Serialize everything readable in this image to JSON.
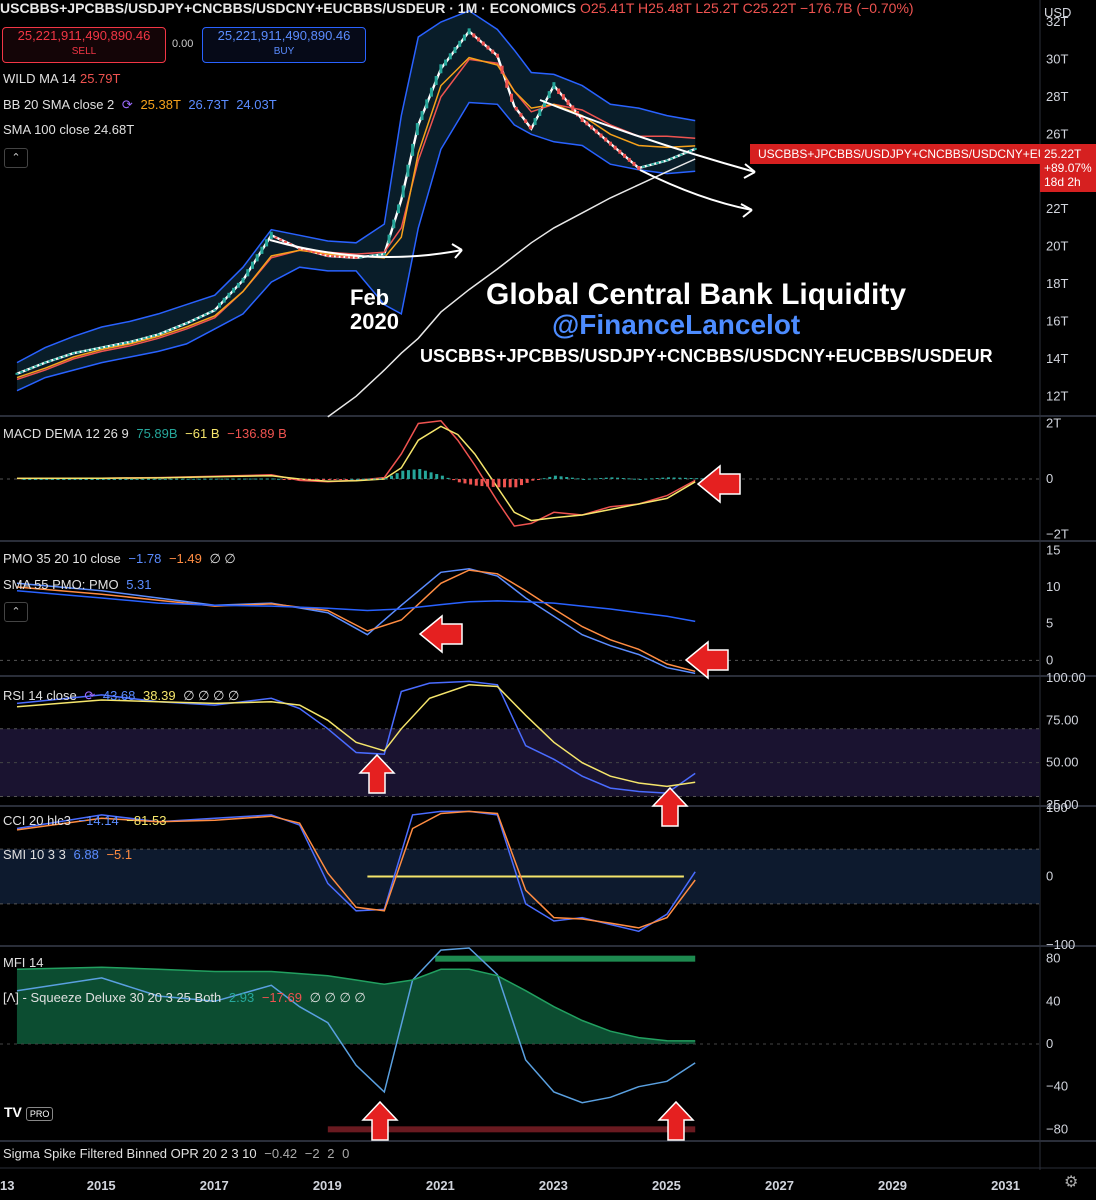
{
  "header": {
    "symbol": "USCBBS+JPCBBS/USDJPY+CNCBBS/USDCNY+EUCBBS/USDEUR · 1M · ECONOMICS",
    "ohlc": "O25.41T H25.48T L25.2T C25.22T −176.7B (−0.70%)",
    "currency": "USD"
  },
  "trade": {
    "sell_price": "25,221,911,490,890.46",
    "sell_label": "SELL",
    "spread": "0.00",
    "buy_price": "25,221,911,490,890.46",
    "buy_label": "BUY"
  },
  "indicators": {
    "wild_ma": {
      "label": "WILD MA 14",
      "value": "25.79T"
    },
    "bb": {
      "label": "BB 20 SMA close 2",
      "basis": "25.38T",
      "upper": "26.73T",
      "lower": "24.03T"
    },
    "sma100": {
      "label": "SMA 100 close",
      "value": "24.68T"
    },
    "macd": {
      "label": "MACD DEMA 12 26 9",
      "v1": "75.89B",
      "v2": "−61 B",
      "v3": "−136.89 B"
    },
    "pmo": {
      "label": "PMO 35 20 10 close",
      "v1": "−1.78",
      "v2": "−1.49",
      "v3": "∅ ∅"
    },
    "sma55pmo": {
      "label": "SMA 55 PMO: PMO",
      "value": "5.31"
    },
    "rsi": {
      "label": "RSI 14 close",
      "v1": "43.68",
      "v2": "38.39",
      "v3": "∅ ∅ ∅ ∅"
    },
    "cci": {
      "label": "CCI 20 hlc3",
      "v1": "−14.14",
      "v2": "−81.53"
    },
    "smi": {
      "label": "SMI 10 3 3",
      "v1": "6.88",
      "v2": "−5.1"
    },
    "mfi": {
      "label": "MFI 14"
    },
    "squeeze": {
      "label": "[Λ] - Squeeze Deluxe 30 20 3 25 Both",
      "v1": "2.93",
      "v2": "−17.69",
      "v3": "∅ ∅ ∅ ∅"
    },
    "sigma": {
      "label": "Sigma Spike Filtered Binned OPR 20 2 3 10",
      "v1": "−0.42",
      "v2": "−2",
      "v3": "2",
      "v4": "0"
    }
  },
  "annotations": {
    "title": "Global Central Bank Liquidity",
    "handle": "@FinanceLancelot",
    "formula": "USCBBS+JPCBBS/USDJPY+CNCBBS/USDCNY+EUCBBS/USDEUR",
    "feb_line1": "Feb",
    "feb_line2": "2020"
  },
  "price_flag": {
    "symbol": "USCBBS+JPCBBS/USDJPY+CNCBBS/USDCNY+EU...",
    "price": "25.22T",
    "change": "+89.07%",
    "countdown": "18d 2h"
  },
  "logo": {
    "brand": "TV",
    "tier": "PRO"
  },
  "colors": {
    "up": "#26a69a",
    "down": "#ef5350",
    "bb": "#2962ff",
    "wild": "#ef5350",
    "basis": "#f7a21b",
    "sma100": "#ffffff",
    "annot_arrow": "#e52020"
  },
  "chart_data": [
    {
      "type": "line",
      "title": "USCBBS+JPCBBS/USDJPY+CNCBBS/USDCNY+EUCBBS/USDEUR",
      "unit": "T USD",
      "x": [
        2013.5,
        2014,
        2014.5,
        2015,
        2015.5,
        2016,
        2016.5,
        2017,
        2017.5,
        2018,
        2018.5,
        2019,
        2019.5,
        2020,
        2020.3,
        2020.6,
        2021,
        2021.5,
        2022,
        2022.3,
        2022.6,
        2023,
        2023.5,
        2024,
        2024.5,
        2025,
        2025.5
      ],
      "series": [
        {
          "name": "close",
          "values": [
            13.2,
            13.8,
            14.3,
            14.6,
            14.9,
            15.3,
            15.9,
            16.6,
            18.2,
            20.6,
            19.9,
            19.5,
            19.4,
            19.6,
            22.5,
            26.5,
            29.5,
            31.5,
            30.2,
            27.5,
            26.3,
            28.6,
            26.8,
            25.5,
            24.2,
            24.6,
            25.22
          ]
        },
        {
          "name": "BB upper",
          "values": [
            13.8,
            14.6,
            15.2,
            15.7,
            16.0,
            16.4,
            16.9,
            17.4,
            18.9,
            20.9,
            20.6,
            20.3,
            20.2,
            21.2,
            27.0,
            31.2,
            32.0,
            32.6,
            31.6,
            30.5,
            29.3,
            29.2,
            28.6,
            27.6,
            27.4,
            27.0,
            26.73
          ]
        },
        {
          "name": "BB lower",
          "values": [
            12.3,
            13.0,
            13.4,
            13.8,
            14.1,
            14.4,
            14.8,
            15.6,
            16.4,
            18.1,
            18.9,
            18.7,
            18.7,
            16.9,
            16.4,
            21.0,
            25.2,
            27.7,
            27.6,
            26.5,
            26.0,
            25.6,
            25.4,
            24.4,
            24.1,
            23.9,
            24.03
          ]
        },
        {
          "name": "WILD MA 14",
          "values": [
            12.9,
            13.4,
            14.0,
            14.4,
            14.7,
            15.1,
            15.6,
            16.2,
            17.6,
            19.4,
            19.8,
            19.7,
            19.6,
            19.7,
            21.0,
            24.6,
            28.0,
            30.0,
            29.8,
            28.3,
            27.2,
            27.6,
            27.3,
            26.5,
            25.9,
            25.9,
            25.79
          ]
        },
        {
          "name": "BB basis",
          "values": [
            13.0,
            13.5,
            14.1,
            14.5,
            14.8,
            15.2,
            15.7,
            16.3,
            17.6,
            19.5,
            19.8,
            19.6,
            19.5,
            19.4,
            20.5,
            25.0,
            28.6,
            30.1,
            29.7,
            28.3,
            27.4,
            27.6,
            27.0,
            26.0,
            25.4,
            25.3,
            25.38
          ]
        },
        {
          "name": "SMA 100",
          "values": [
            null,
            null,
            null,
            null,
            null,
            null,
            null,
            null,
            null,
            null,
            null,
            10.9,
            12.0,
            13.4,
            14.3,
            15.1,
            16.5,
            17.7,
            18.8,
            19.5,
            20.2,
            21.0,
            21.8,
            22.6,
            23.3,
            24.0,
            24.68
          ]
        }
      ],
      "ylim": [
        11,
        32
      ],
      "yticks": [
        "32T",
        "30T",
        "28T",
        "26T",
        "24T",
        "22T",
        "20T",
        "18T",
        "16T",
        "14T",
        "12T"
      ]
    },
    {
      "type": "line",
      "title": "MACD DEMA 12 26 9",
      "x": [
        2013.5,
        2015,
        2016,
        2017,
        2018,
        2018.5,
        2019,
        2019.5,
        2020,
        2020.3,
        2020.6,
        2021,
        2021.3,
        2021.6,
        2022,
        2022.3,
        2022.6,
        2023,
        2023.5,
        2024,
        2024.5,
        2025,
        2025.5
      ],
      "series": [
        {
          "name": "MACD",
          "values": [
            0.02,
            0.03,
            0.05,
            0.1,
            0.15,
            -0.05,
            -0.1,
            -0.05,
            0.05,
            0.9,
            2.0,
            2.1,
            1.4,
            0.5,
            -0.8,
            -1.7,
            -1.6,
            -1.2,
            -1.3,
            -1.0,
            -0.9,
            -0.6,
            -0.05
          ]
        },
        {
          "name": "Signal",
          "values": [
            0.02,
            0.03,
            0.04,
            0.08,
            0.12,
            0.0,
            -0.08,
            -0.06,
            0.0,
            0.4,
            1.4,
            1.9,
            1.6,
            0.9,
            -0.3,
            -1.2,
            -1.5,
            -1.4,
            -1.3,
            -1.1,
            -0.9,
            -0.7,
            -0.1
          ]
        }
      ],
      "ylim": [
        -2.2,
        2.2
      ],
      "yticks": [
        "2T",
        "0",
        "−2T"
      ]
    },
    {
      "type": "line",
      "title": "PMO 35 20 10 close",
      "x": [
        2013.5,
        2015,
        2016,
        2017,
        2018,
        2019,
        2019.7,
        2020.3,
        2021,
        2021.5,
        2022,
        2022.5,
        2023,
        2023.5,
        2024,
        2024.5,
        2025,
        2025.5
      ],
      "series": [
        {
          "name": "PMO",
          "values": [
            10.5,
            9.5,
            8.5,
            7.5,
            7.8,
            6.5,
            3.5,
            7.5,
            12.0,
            12.5,
            11.5,
            8.5,
            6.0,
            3.5,
            2.0,
            0.8,
            -1.0,
            -1.78
          ]
        },
        {
          "name": "Signal",
          "values": [
            10.0,
            9.0,
            8.2,
            7.4,
            7.7,
            6.8,
            4.0,
            5.5,
            10.5,
            12.3,
            11.8,
            9.5,
            7.0,
            4.6,
            2.8,
            1.5,
            -0.5,
            -1.49
          ]
        },
        {
          "name": "SMA 55 PMO",
          "values": [
            9.5,
            8.5,
            7.8,
            7.5,
            7.4,
            7.1,
            6.8,
            7.0,
            7.6,
            8.0,
            8.1,
            8.0,
            7.8,
            7.4,
            7.0,
            6.5,
            6.0,
            5.31
          ]
        }
      ],
      "ylim": [
        -2,
        16
      ],
      "yticks": [
        "15",
        "10",
        "5",
        "0"
      ]
    },
    {
      "type": "line",
      "title": "RSI 14 close",
      "x": [
        2013.5,
        2015,
        2016,
        2017,
        2018,
        2018.5,
        2019,
        2019.5,
        2020,
        2020.3,
        2020.8,
        2021.5,
        2022,
        2022.5,
        2023,
        2023.5,
        2024,
        2024.5,
        2025,
        2025.5
      ],
      "series": [
        {
          "name": "RSI",
          "values": [
            85,
            90,
            86,
            84,
            88,
            82,
            70,
            56,
            55,
            92,
            97,
            98,
            96,
            60,
            52,
            42,
            35,
            33,
            32,
            43.68
          ]
        },
        {
          "name": "RSI MA",
          "values": [
            83,
            87,
            86,
            85,
            86,
            84,
            75,
            62,
            57,
            70,
            88,
            96,
            95,
            78,
            62,
            50,
            42,
            38,
            36,
            38.39
          ]
        }
      ],
      "ylim": [
        25,
        100
      ],
      "yticks": [
        "100.00",
        "75.00",
        "50.00",
        "25.00"
      ]
    },
    {
      "type": "line",
      "title": "SMI 10 3 3",
      "x": [
        2013.5,
        2015,
        2016,
        2017,
        2018,
        2018.5,
        2019,
        2019.5,
        2020,
        2020.5,
        2021,
        2021.5,
        2022,
        2022.5,
        2023,
        2023.5,
        2024,
        2024.5,
        2025,
        2025.5
      ],
      "series": [
        {
          "name": "SMI",
          "values": [
            70,
            90,
            80,
            85,
            90,
            75,
            -10,
            -50,
            -48,
            90,
            95,
            95,
            90,
            -40,
            -65,
            -60,
            -70,
            -80,
            -55,
            6.88
          ]
        },
        {
          "name": "Signal",
          "values": [
            68,
            85,
            80,
            82,
            88,
            78,
            5,
            -45,
            -50,
            70,
            92,
            95,
            92,
            -20,
            -60,
            -62,
            -68,
            -75,
            -60,
            -5.1
          ]
        }
      ],
      "ylim": [
        -100,
        100
      ],
      "yticks": [
        "100",
        "0",
        "−100"
      ]
    },
    {
      "type": "line",
      "title": "[Λ] - Squeeze Deluxe 30 20 3 25 Both",
      "x": [
        2013.5,
        2015,
        2016,
        2017,
        2018,
        2018.5,
        2019,
        2019.5,
        2020,
        2020.5,
        2021,
        2021.5,
        2022,
        2022.5,
        2023,
        2023.5,
        2024,
        2024.5,
        2025,
        2025.5
      ],
      "series": [
        {
          "name": "Momentum",
          "values": [
            50,
            62,
            45,
            40,
            55,
            35,
            20,
            -20,
            -45,
            60,
            88,
            90,
            65,
            -15,
            -45,
            -55,
            -50,
            -40,
            -35,
            -17.69
          ]
        },
        {
          "name": "Flux",
          "values": [
            70,
            72,
            70,
            68,
            68,
            66,
            64,
            60,
            56,
            60,
            70,
            70,
            64,
            50,
            35,
            22,
            12,
            6,
            3,
            2.93
          ]
        }
      ],
      "ylim": [
        -90,
        90
      ],
      "yticks": [
        "80",
        "40",
        "0",
        "−40",
        "−80"
      ]
    }
  ],
  "xaxis": {
    "labels": [
      "13",
      "2015",
      "2017",
      "2019",
      "2021",
      "2023",
      "2025",
      "2027",
      "2029",
      "2031"
    ]
  }
}
